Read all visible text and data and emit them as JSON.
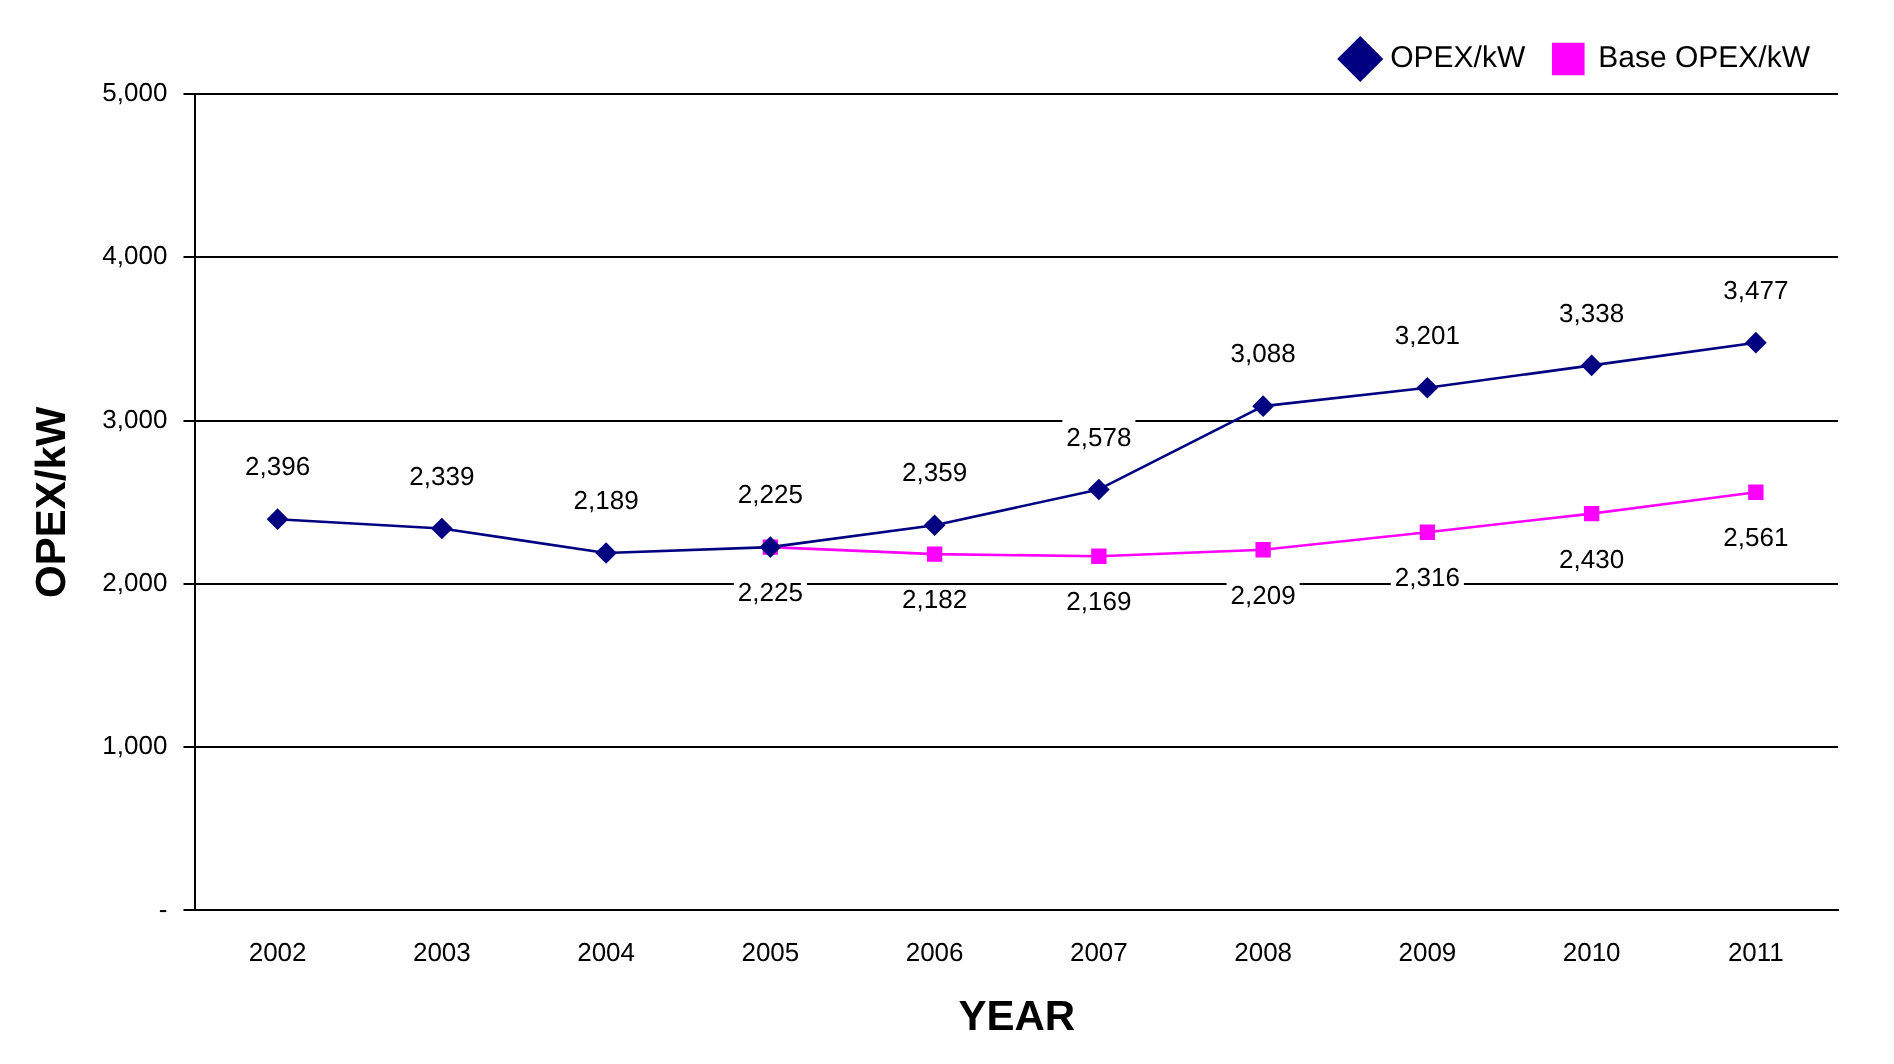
{
  "chart_data": {
    "type": "line",
    "xlabel": "YEAR",
    "ylabel": "OPEX/kW",
    "categories": [
      "2002",
      "2003",
      "2004",
      "2005",
      "2006",
      "2007",
      "2008",
      "2009",
      "2010",
      "2011"
    ],
    "series": [
      {
        "name": "OPEX/kW",
        "color": "#000080",
        "marker": "diamond",
        "values": [
          2396,
          2339,
          2189,
          2225,
          2359,
          2578,
          3088,
          3201,
          3338,
          3477
        ],
        "value_labels": [
          "2,396",
          "2,339",
          "2,189",
          "2,225",
          "2,359",
          "2,578",
          "3,088",
          "3,201",
          "3,338",
          "3,477"
        ]
      },
      {
        "name": "Base OPEX/kW",
        "color": "#ff00ff",
        "marker": "square",
        "values": [
          null,
          null,
          null,
          2225,
          2182,
          2169,
          2209,
          2316,
          2430,
          2561
        ],
        "value_labels": [
          null,
          null,
          null,
          "2,225",
          "2,182",
          "2,169",
          "2,209",
          "2,316",
          "2,430",
          "2,561"
        ]
      }
    ],
    "ylim": [
      0,
      5000
    ],
    "yticks": [
      {
        "value": 0,
        "label": "-"
      },
      {
        "value": 1000,
        "label": "1,000"
      },
      {
        "value": 2000,
        "label": "2,000"
      },
      {
        "value": 3000,
        "label": "3,000"
      },
      {
        "value": 4000,
        "label": "4,000"
      },
      {
        "value": 5000,
        "label": "5,000"
      }
    ],
    "grid": "y",
    "legend": "top right",
    "line_style": "solid"
  }
}
